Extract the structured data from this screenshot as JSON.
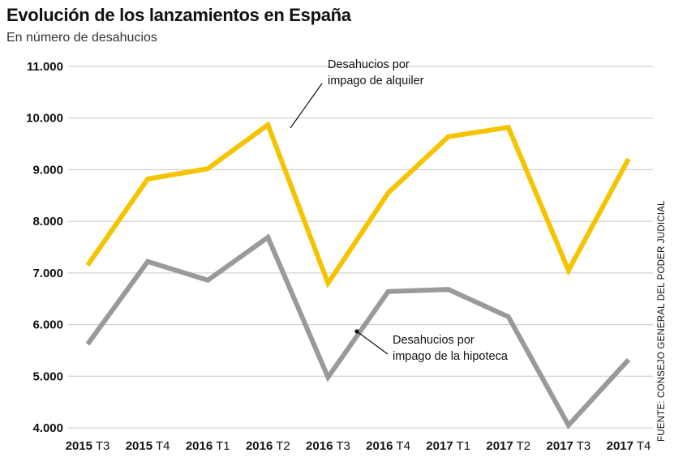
{
  "title": "Evolución de los lanzamientos en España",
  "subtitle": "En número de desahucios",
  "source": "FUENTE: CONSEJO GENERAL DEL PODER JUDICIAL",
  "annotations": {
    "alquiler": [
      "Desahucios por",
      "impago de alquiler"
    ],
    "hipoteca": [
      "Desahucios por",
      "impago de la hipoteca"
    ]
  },
  "chart_data": {
    "type": "line",
    "title": "Evolución de los lanzamientos en España",
    "subtitle": "En número de desahucios",
    "xlabel": "",
    "ylabel": "",
    "x": [
      "2015 T3",
      "2015 T4",
      "2016 T1",
      "2016 T2",
      "2016 T3",
      "2016 T4",
      "2017 T1",
      "2017 T2",
      "2017 T3",
      "2017 T4"
    ],
    "ylim": [
      4000,
      11000
    ],
    "yticks": [
      4000,
      5000,
      6000,
      7000,
      8000,
      9000,
      10000,
      11000
    ],
    "ytick_labels": [
      "4.000",
      "5.000",
      "6.000",
      "7.000",
      "8.000",
      "9.000",
      "10.000",
      "11.000"
    ],
    "grid": true,
    "series": [
      {
        "name": "Desahucios por impago de alquiler",
        "color": "#f5c400",
        "values": [
          7150,
          8820,
          9020,
          9870,
          6800,
          8550,
          9640,
          9820,
          7050,
          9210
        ]
      },
      {
        "name": "Desahucios por impago de la hipoteca",
        "color": "#9a9a9a",
        "values": [
          5620,
          7220,
          6860,
          7690,
          4980,
          6640,
          6680,
          6150,
          4050,
          5320
        ]
      }
    ]
  }
}
